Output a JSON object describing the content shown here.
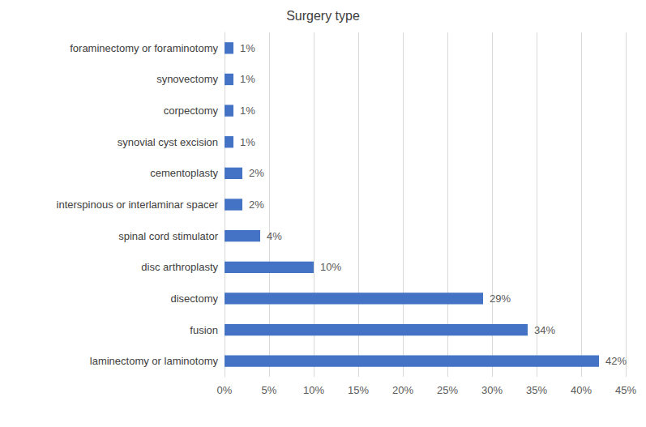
{
  "chart_data": {
    "type": "bar",
    "orientation": "horizontal",
    "title": "Surgery type",
    "categories": [
      "foraminectomy or foraminotomy",
      "synovectomy",
      "corpectomy",
      "synovial cyst excision",
      "cementoplasty",
      "interspinous or interlaminar spacer",
      "spinal cord stimulator",
      "disc arthroplasty",
      "disectomy",
      "fusion",
      "laminectomy or laminotomy"
    ],
    "values": [
      1,
      1,
      1,
      1,
      2,
      2,
      4,
      10,
      29,
      34,
      42
    ],
    "value_labels": [
      "1%",
      "1%",
      "1%",
      "1%",
      "2%",
      "2%",
      "4%",
      "10%",
      "29%",
      "34%",
      "42%"
    ],
    "color": "#4472c4",
    "data_labels": true,
    "grid": true,
    "xlim": [
      0,
      45
    ],
    "xticks": [
      {
        "value": 0,
        "label": "0%"
      },
      {
        "value": 5,
        "label": "5%"
      },
      {
        "value": 10,
        "label": "10%"
      },
      {
        "value": 15,
        "label": "15%"
      },
      {
        "value": 20,
        "label": "20%"
      },
      {
        "value": 25,
        "label": "25%"
      },
      {
        "value": 30,
        "label": "30%"
      },
      {
        "value": 35,
        "label": "35%"
      },
      {
        "value": 40,
        "label": "40%"
      },
      {
        "value": 45,
        "label": "45%"
      }
    ]
  }
}
